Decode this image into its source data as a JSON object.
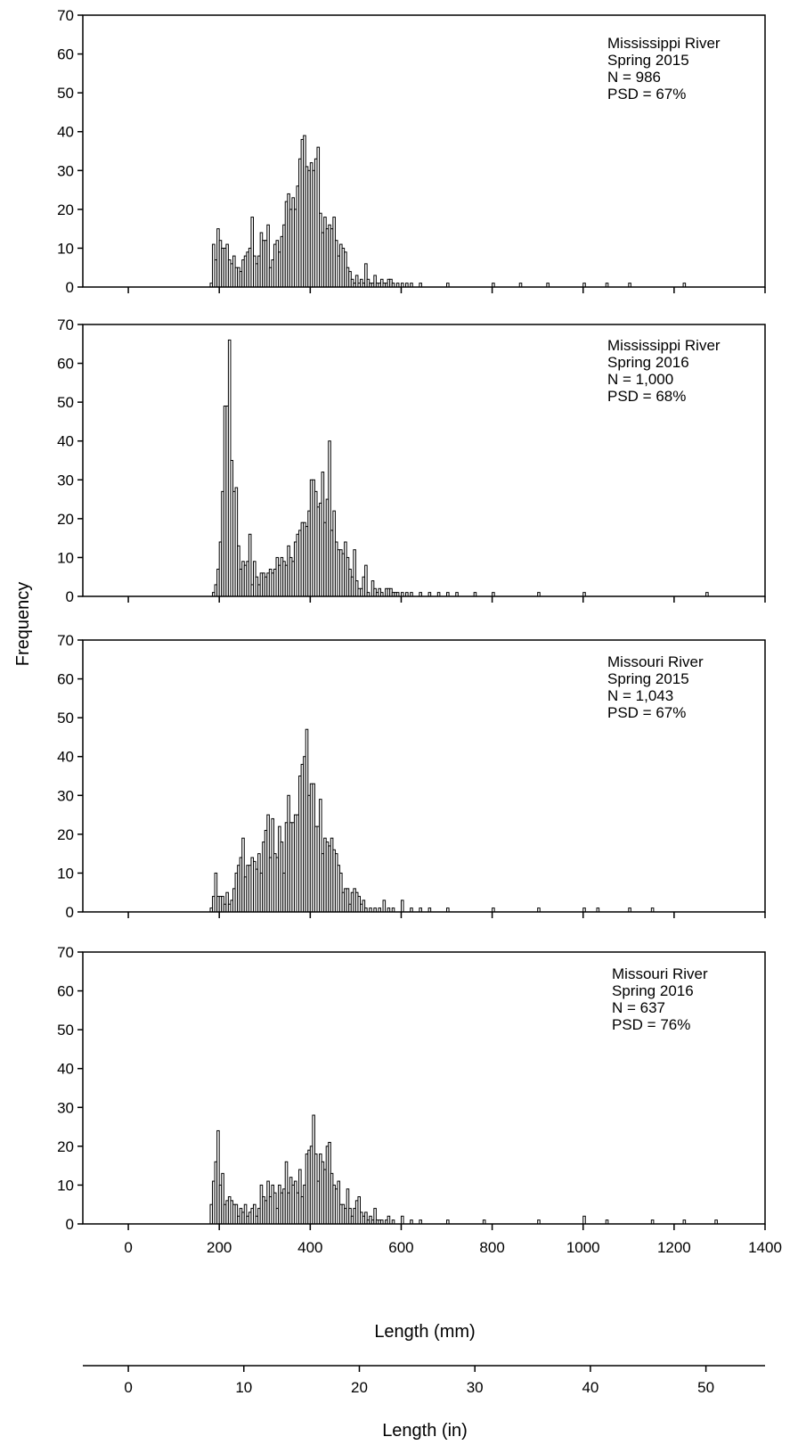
{
  "figure": {
    "ylabel": "Frequency",
    "xlabel_mm": "Length (mm)",
    "xlabel_in": "Length (in)"
  },
  "chart_data": [
    {
      "type": "bar",
      "annotation": [
        "Mississippi River",
        "Spring 2015",
        "N = 986",
        "PSD = 67%"
      ],
      "xlim": [
        -100,
        1400
      ],
      "ylim": [
        0,
        70
      ],
      "yticks": [
        0,
        10,
        20,
        30,
        40,
        50,
        60,
        70
      ],
      "bin_width": 5,
      "bins": [
        [
          180,
          1
        ],
        [
          185,
          11
        ],
        [
          190,
          7
        ],
        [
          195,
          15
        ],
        [
          200,
          12
        ],
        [
          205,
          10
        ],
        [
          210,
          10
        ],
        [
          215,
          11
        ],
        [
          220,
          7
        ],
        [
          225,
          6
        ],
        [
          230,
          8
        ],
        [
          235,
          5
        ],
        [
          240,
          5
        ],
        [
          245,
          4
        ],
        [
          250,
          7
        ],
        [
          255,
          8
        ],
        [
          260,
          9
        ],
        [
          265,
          10
        ],
        [
          270,
          18
        ],
        [
          275,
          8
        ],
        [
          280,
          6
        ],
        [
          285,
          8
        ],
        [
          290,
          14
        ],
        [
          295,
          12
        ],
        [
          300,
          12
        ],
        [
          305,
          16
        ],
        [
          310,
          5
        ],
        [
          315,
          7
        ],
        [
          320,
          11
        ],
        [
          325,
          12
        ],
        [
          330,
          9
        ],
        [
          335,
          13
        ],
        [
          340,
          16
        ],
        [
          345,
          22
        ],
        [
          350,
          24
        ],
        [
          355,
          20
        ],
        [
          360,
          23
        ],
        [
          365,
          20
        ],
        [
          370,
          26
        ],
        [
          375,
          33
        ],
        [
          380,
          38
        ],
        [
          385,
          39
        ],
        [
          390,
          31
        ],
        [
          395,
          30
        ],
        [
          400,
          32
        ],
        [
          405,
          30
        ],
        [
          410,
          33
        ],
        [
          415,
          36
        ],
        [
          420,
          19
        ],
        [
          425,
          14
        ],
        [
          430,
          18
        ],
        [
          435,
          15
        ],
        [
          440,
          16
        ],
        [
          445,
          15
        ],
        [
          450,
          18
        ],
        [
          455,
          12
        ],
        [
          460,
          8
        ],
        [
          465,
          11
        ],
        [
          470,
          10
        ],
        [
          475,
          9
        ],
        [
          480,
          5
        ],
        [
          485,
          4
        ],
        [
          490,
          2
        ],
        [
          495,
          1
        ],
        [
          500,
          3
        ],
        [
          505,
          1
        ],
        [
          510,
          2
        ],
        [
          515,
          1
        ],
        [
          520,
          6
        ],
        [
          525,
          2
        ],
        [
          530,
          1
        ],
        [
          535,
          1
        ],
        [
          540,
          3
        ],
        [
          545,
          1
        ],
        [
          550,
          1
        ],
        [
          555,
          2
        ],
        [
          560,
          1
        ],
        [
          565,
          1
        ],
        [
          570,
          2
        ],
        [
          575,
          2
        ],
        [
          580,
          1
        ],
        [
          590,
          1
        ],
        [
          600,
          1
        ],
        [
          610,
          1
        ],
        [
          620,
          1
        ],
        [
          640,
          1
        ],
        [
          700,
          1
        ],
        [
          800,
          1
        ],
        [
          860,
          1
        ],
        [
          920,
          1
        ],
        [
          1000,
          1
        ],
        [
          1050,
          1
        ],
        [
          1100,
          1
        ],
        [
          1220,
          1
        ]
      ]
    },
    {
      "type": "bar",
      "annotation": [
        "Mississippi River",
        "Spring 2016",
        "N = 1,000",
        "PSD = 68%"
      ],
      "xlim": [
        -100,
        1400
      ],
      "ylim": [
        0,
        70
      ],
      "yticks": [
        0,
        10,
        20,
        30,
        40,
        50,
        60,
        70
      ],
      "bin_width": 5,
      "bins": [
        [
          185,
          1
        ],
        [
          190,
          3
        ],
        [
          195,
          7
        ],
        [
          200,
          14
        ],
        [
          205,
          27
        ],
        [
          210,
          49
        ],
        [
          215,
          49
        ],
        [
          220,
          66
        ],
        [
          225,
          35
        ],
        [
          230,
          27
        ],
        [
          235,
          28
        ],
        [
          240,
          13
        ],
        [
          245,
          7
        ],
        [
          250,
          9
        ],
        [
          255,
          8
        ],
        [
          260,
          9
        ],
        [
          265,
          16
        ],
        [
          270,
          3
        ],
        [
          275,
          9
        ],
        [
          280,
          5
        ],
        [
          285,
          3
        ],
        [
          290,
          6
        ],
        [
          295,
          6
        ],
        [
          300,
          5
        ],
        [
          305,
          6
        ],
        [
          310,
          7
        ],
        [
          315,
          6
        ],
        [
          320,
          7
        ],
        [
          325,
          10
        ],
        [
          330,
          8
        ],
        [
          335,
          10
        ],
        [
          340,
          9
        ],
        [
          345,
          8
        ],
        [
          350,
          13
        ],
        [
          355,
          10
        ],
        [
          360,
          9
        ],
        [
          365,
          14
        ],
        [
          370,
          16
        ],
        [
          375,
          17
        ],
        [
          380,
          19
        ],
        [
          385,
          19
        ],
        [
          390,
          18
        ],
        [
          395,
          22
        ],
        [
          400,
          30
        ],
        [
          405,
          30
        ],
        [
          410,
          27
        ],
        [
          415,
          23
        ],
        [
          420,
          24
        ],
        [
          425,
          32
        ],
        [
          430,
          19
        ],
        [
          435,
          25
        ],
        [
          440,
          40
        ],
        [
          445,
          17
        ],
        [
          450,
          22
        ],
        [
          455,
          14
        ],
        [
          460,
          12
        ],
        [
          465,
          12
        ],
        [
          470,
          11
        ],
        [
          475,
          14
        ],
        [
          480,
          10
        ],
        [
          485,
          7
        ],
        [
          490,
          5
        ],
        [
          495,
          12
        ],
        [
          500,
          4
        ],
        [
          505,
          2
        ],
        [
          510,
          2
        ],
        [
          515,
          5
        ],
        [
          520,
          8
        ],
        [
          525,
          1
        ],
        [
          535,
          4
        ],
        [
          540,
          2
        ],
        [
          545,
          1
        ],
        [
          550,
          2
        ],
        [
          555,
          1
        ],
        [
          565,
          2
        ],
        [
          570,
          2
        ],
        [
          575,
          2
        ],
        [
          580,
          1
        ],
        [
          585,
          1
        ],
        [
          590,
          1
        ],
        [
          600,
          1
        ],
        [
          610,
          1
        ],
        [
          620,
          1
        ],
        [
          640,
          1
        ],
        [
          660,
          1
        ],
        [
          680,
          1
        ],
        [
          700,
          1
        ],
        [
          720,
          1
        ],
        [
          760,
          1
        ],
        [
          800,
          1
        ],
        [
          900,
          1
        ],
        [
          1000,
          1
        ],
        [
          1270,
          1
        ]
      ]
    },
    {
      "type": "bar",
      "annotation": [
        "Missouri River",
        "Spring 2015",
        "N = 1,043",
        "PSD = 67%"
      ],
      "xlim": [
        -100,
        1400
      ],
      "ylim": [
        0,
        70
      ],
      "yticks": [
        0,
        10,
        20,
        30,
        40,
        50,
        60,
        70
      ],
      "bin_width": 5,
      "bins": [
        [
          180,
          1
        ],
        [
          185,
          4
        ],
        [
          190,
          10
        ],
        [
          195,
          4
        ],
        [
          200,
          4
        ],
        [
          205,
          4
        ],
        [
          210,
          2
        ],
        [
          215,
          5
        ],
        [
          220,
          2
        ],
        [
          225,
          3
        ],
        [
          230,
          6
        ],
        [
          235,
          10
        ],
        [
          240,
          12
        ],
        [
          245,
          14
        ],
        [
          250,
          19
        ],
        [
          255,
          9
        ],
        [
          260,
          12
        ],
        [
          265,
          12
        ],
        [
          270,
          14
        ],
        [
          275,
          13
        ],
        [
          280,
          11
        ],
        [
          285,
          15
        ],
        [
          290,
          10
        ],
        [
          295,
          18
        ],
        [
          300,
          21
        ],
        [
          305,
          25
        ],
        [
          310,
          14
        ],
        [
          315,
          24
        ],
        [
          320,
          15
        ],
        [
          325,
          14
        ],
        [
          330,
          22
        ],
        [
          335,
          18
        ],
        [
          340,
          10
        ],
        [
          345,
          23
        ],
        [
          350,
          30
        ],
        [
          355,
          23
        ],
        [
          360,
          23
        ],
        [
          365,
          25
        ],
        [
          370,
          25
        ],
        [
          375,
          35
        ],
        [
          380,
          38
        ],
        [
          385,
          40
        ],
        [
          390,
          47
        ],
        [
          395,
          30
        ],
        [
          400,
          33
        ],
        [
          405,
          33
        ],
        [
          410,
          22
        ],
        [
          415,
          22
        ],
        [
          420,
          29
        ],
        [
          425,
          15
        ],
        [
          430,
          19
        ],
        [
          435,
          18
        ],
        [
          440,
          17
        ],
        [
          445,
          19
        ],
        [
          450,
          16
        ],
        [
          455,
          15
        ],
        [
          460,
          12
        ],
        [
          465,
          10
        ],
        [
          470,
          5
        ],
        [
          475,
          6
        ],
        [
          480,
          6
        ],
        [
          485,
          2
        ],
        [
          490,
          5
        ],
        [
          495,
          6
        ],
        [
          500,
          5
        ],
        [
          505,
          4
        ],
        [
          510,
          2
        ],
        [
          515,
          3
        ],
        [
          520,
          1
        ],
        [
          530,
          1
        ],
        [
          540,
          1
        ],
        [
          550,
          1
        ],
        [
          560,
          3
        ],
        [
          570,
          1
        ],
        [
          580,
          1
        ],
        [
          600,
          3
        ],
        [
          620,
          1
        ],
        [
          640,
          1
        ],
        [
          660,
          1
        ],
        [
          700,
          1
        ],
        [
          800,
          1
        ],
        [
          900,
          1
        ],
        [
          1000,
          1
        ],
        [
          1030,
          1
        ],
        [
          1100,
          1
        ],
        [
          1150,
          1
        ]
      ]
    },
    {
      "type": "bar",
      "annotation": [
        "Missouri River",
        "Spring 2016",
        "N = 637",
        "PSD = 76%"
      ],
      "xlim": [
        -100,
        1400
      ],
      "ylim": [
        0,
        70
      ],
      "yticks": [
        0,
        10,
        20,
        30,
        40,
        50,
        60,
        70
      ],
      "bin_width": 5,
      "bins": [
        [
          180,
          5
        ],
        [
          185,
          11
        ],
        [
          190,
          16
        ],
        [
          195,
          24
        ],
        [
          200,
          10
        ],
        [
          205,
          13
        ],
        [
          210,
          5
        ],
        [
          215,
          6
        ],
        [
          220,
          7
        ],
        [
          225,
          6
        ],
        [
          230,
          5
        ],
        [
          235,
          5
        ],
        [
          240,
          2
        ],
        [
          245,
          4
        ],
        [
          250,
          3
        ],
        [
          255,
          5
        ],
        [
          260,
          2
        ],
        [
          265,
          3
        ],
        [
          270,
          4
        ],
        [
          275,
          5
        ],
        [
          280,
          2
        ],
        [
          285,
          4
        ],
        [
          290,
          10
        ],
        [
          295,
          7
        ],
        [
          300,
          6
        ],
        [
          305,
          11
        ],
        [
          310,
          7
        ],
        [
          315,
          10
        ],
        [
          320,
          8
        ],
        [
          325,
          4
        ],
        [
          330,
          10
        ],
        [
          335,
          8
        ],
        [
          340,
          9
        ],
        [
          345,
          16
        ],
        [
          350,
          8
        ],
        [
          355,
          12
        ],
        [
          360,
          10
        ],
        [
          365,
          11
        ],
        [
          370,
          8
        ],
        [
          375,
          14
        ],
        [
          380,
          7
        ],
        [
          385,
          10
        ],
        [
          390,
          18
        ],
        [
          395,
          19
        ],
        [
          400,
          20
        ],
        [
          405,
          28
        ],
        [
          410,
          18
        ],
        [
          415,
          11
        ],
        [
          420,
          18
        ],
        [
          425,
          16
        ],
        [
          430,
          14
        ],
        [
          435,
          20
        ],
        [
          440,
          21
        ],
        [
          445,
          13
        ],
        [
          450,
          10
        ],
        [
          455,
          9
        ],
        [
          460,
          11
        ],
        [
          465,
          5
        ],
        [
          470,
          5
        ],
        [
          475,
          4
        ],
        [
          480,
          9
        ],
        [
          485,
          4
        ],
        [
          490,
          2
        ],
        [
          495,
          4
        ],
        [
          500,
          6
        ],
        [
          505,
          7
        ],
        [
          510,
          3
        ],
        [
          515,
          2
        ],
        [
          520,
          3
        ],
        [
          525,
          1
        ],
        [
          530,
          2
        ],
        [
          535,
          1
        ],
        [
          540,
          4
        ],
        [
          545,
          1
        ],
        [
          550,
          1
        ],
        [
          555,
          1
        ],
        [
          565,
          1
        ],
        [
          570,
          2
        ],
        [
          580,
          1
        ],
        [
          600,
          2
        ],
        [
          620,
          1
        ],
        [
          640,
          1
        ],
        [
          700,
          1
        ],
        [
          780,
          1
        ],
        [
          900,
          1
        ],
        [
          1000,
          2
        ],
        [
          1050,
          1
        ],
        [
          1150,
          1
        ],
        [
          1220,
          1
        ],
        [
          1290,
          1
        ]
      ]
    }
  ],
  "axes_mm": {
    "ticks": [
      0,
      200,
      400,
      600,
      800,
      1000,
      1200,
      1400
    ],
    "tick_labels": [
      "0",
      "200",
      "400",
      "600",
      "800",
      "1000",
      "1200",
      "1400"
    ]
  },
  "axes_in": {
    "ticks": [
      0,
      10,
      20,
      30,
      40,
      50
    ],
    "tick_labels": [
      "0",
      "10",
      "20",
      "30",
      "40",
      "50"
    ]
  }
}
